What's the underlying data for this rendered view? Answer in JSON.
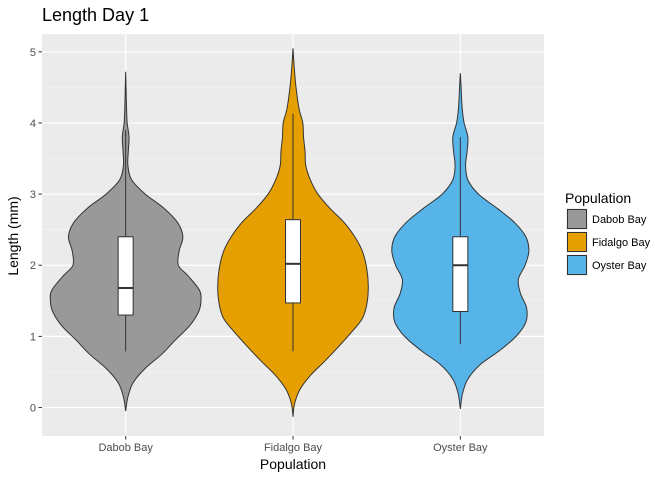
{
  "chart_data": {
    "type": "violin",
    "title": "Length Day 1",
    "xlabel": "Population",
    "ylabel": "Length (mm)",
    "ylim": [
      -0.4,
      5.25
    ],
    "yticks": [
      "0",
      "1",
      "2",
      "3",
      "4",
      "5"
    ],
    "categories": [
      "Dabob Bay",
      "Fidalgo Bay",
      "Oyster Bay"
    ],
    "grid": true,
    "legend_position": "right",
    "legend_title": "Population",
    "series": [
      {
        "name": "Dabob Bay",
        "color": "#999999",
        "violin_range": [
          -0.05,
          4.72
        ],
        "box": {
          "whisker_low": 0.79,
          "q1": 1.3,
          "median": 1.68,
          "q3": 2.4,
          "whisker_high": 3.9
        },
        "density_profile": [
          [
            -0.05,
            0.0
          ],
          [
            0.15,
            0.03
          ],
          [
            0.35,
            0.1
          ],
          [
            0.55,
            0.26
          ],
          [
            0.75,
            0.48
          ],
          [
            0.95,
            0.66
          ],
          [
            1.15,
            0.85
          ],
          [
            1.35,
            0.97
          ],
          [
            1.5,
            1.0
          ],
          [
            1.65,
            0.98
          ],
          [
            1.85,
            0.83
          ],
          [
            2.0,
            0.7
          ],
          [
            2.2,
            0.71
          ],
          [
            2.4,
            0.76
          ],
          [
            2.6,
            0.69
          ],
          [
            2.8,
            0.51
          ],
          [
            3.0,
            0.26
          ],
          [
            3.2,
            0.08
          ],
          [
            3.4,
            0.03
          ],
          [
            3.6,
            0.035
          ],
          [
            3.8,
            0.045
          ],
          [
            4.0,
            0.02
          ],
          [
            4.2,
            0.012
          ],
          [
            4.5,
            0.005
          ],
          [
            4.72,
            0.0
          ]
        ]
      },
      {
        "name": "Fidalgo Bay",
        "color": "#E69F00",
        "violin_range": [
          -0.13,
          5.05
        ],
        "box": {
          "whisker_low": 0.79,
          "q1": 1.47,
          "median": 2.02,
          "q3": 2.64,
          "whisker_high": 4.13
        },
        "density_profile": [
          [
            -0.13,
            0.0
          ],
          [
            0.05,
            0.02
          ],
          [
            0.25,
            0.09
          ],
          [
            0.45,
            0.23
          ],
          [
            0.65,
            0.42
          ],
          [
            0.85,
            0.6
          ],
          [
            1.05,
            0.77
          ],
          [
            1.25,
            0.92
          ],
          [
            1.45,
            0.98
          ],
          [
            1.7,
            1.0
          ],
          [
            1.95,
            0.98
          ],
          [
            2.2,
            0.92
          ],
          [
            2.4,
            0.82
          ],
          [
            2.6,
            0.68
          ],
          [
            2.8,
            0.49
          ],
          [
            3.0,
            0.33
          ],
          [
            3.2,
            0.23
          ],
          [
            3.4,
            0.17
          ],
          [
            3.6,
            0.16
          ],
          [
            3.8,
            0.14
          ],
          [
            4.0,
            0.13
          ],
          [
            4.2,
            0.08
          ],
          [
            4.5,
            0.04
          ],
          [
            4.8,
            0.015
          ],
          [
            5.05,
            0.0
          ]
        ]
      },
      {
        "name": "Oyster Bay",
        "color": "#56B4E9",
        "violin_range": [
          -0.02,
          4.7
        ],
        "box": {
          "whisker_low": 0.89,
          "q1": 1.35,
          "median": 2.0,
          "q3": 2.4,
          "whisker_high": 3.8
        },
        "density_profile": [
          [
            -0.02,
            0.0
          ],
          [
            0.2,
            0.03
          ],
          [
            0.4,
            0.1
          ],
          [
            0.6,
            0.26
          ],
          [
            0.8,
            0.52
          ],
          [
            1.0,
            0.74
          ],
          [
            1.2,
            0.87
          ],
          [
            1.4,
            0.88
          ],
          [
            1.6,
            0.8
          ],
          [
            1.8,
            0.77
          ],
          [
            2.0,
            0.86
          ],
          [
            2.2,
            0.91
          ],
          [
            2.4,
            0.87
          ],
          [
            2.6,
            0.72
          ],
          [
            2.8,
            0.49
          ],
          [
            3.0,
            0.24
          ],
          [
            3.2,
            0.1
          ],
          [
            3.4,
            0.07
          ],
          [
            3.6,
            0.09
          ],
          [
            3.8,
            0.1
          ],
          [
            4.0,
            0.05
          ],
          [
            4.2,
            0.025
          ],
          [
            4.5,
            0.01
          ],
          [
            4.7,
            0.0
          ]
        ]
      }
    ]
  }
}
